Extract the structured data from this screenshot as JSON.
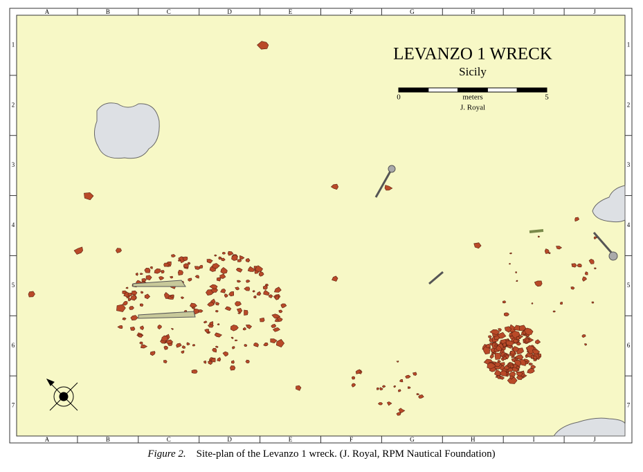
{
  "map": {
    "title": "LEVANZO 1 WRECK",
    "subtitle": "Sicily",
    "scale": {
      "start": 0,
      "end": 5,
      "unit": "meters",
      "credit": "J. Royal"
    },
    "columns": [
      "A",
      "B",
      "C",
      "D",
      "E",
      "F",
      "G",
      "H",
      "I",
      "J"
    ],
    "rows": [
      1,
      2,
      3,
      4,
      5,
      6,
      7
    ]
  },
  "caption": {
    "label": "Figure 2.",
    "text": "Site-plan of the Levanzo 1 wreck. (J. Royal, RPM Nautical Foundation)"
  }
}
